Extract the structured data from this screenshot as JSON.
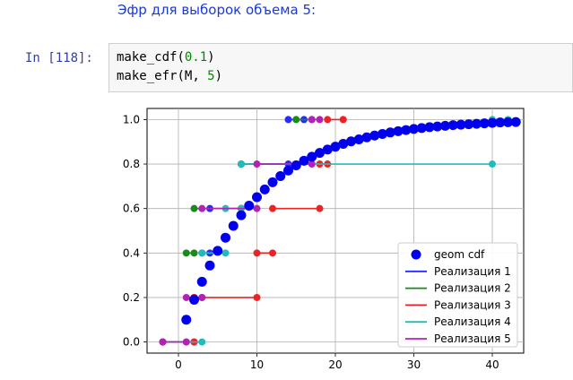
{
  "markdown": {
    "text": "Эфр для выборок объема 5:"
  },
  "cell": {
    "prompt": "In [118]:",
    "line1": {
      "fn": "make_cdf",
      "open": "(",
      "arg": "0.1",
      "close": ")"
    },
    "line2": {
      "fn": "make_efr",
      "open": "(",
      "arg1": "M",
      "sep": ", ",
      "arg2": "5",
      "close": ")"
    }
  },
  "chart_data": {
    "type": "line",
    "title": "",
    "xlabel": "",
    "ylabel": "",
    "xlim": [
      -4,
      44
    ],
    "ylim": [
      -0.05,
      1.05
    ],
    "xticks": [
      0,
      10,
      20,
      30,
      40
    ],
    "yticks": [
      0.0,
      0.2,
      0.4,
      0.6,
      0.8,
      1.0
    ],
    "xtick_labels": [
      "0",
      "10",
      "20",
      "30",
      "40"
    ],
    "ytick_labels": [
      "0.0",
      "0.2",
      "0.4",
      "0.6",
      "0.8",
      "1.0"
    ],
    "grid": true,
    "legend_position": "lower-right",
    "colors": {
      "geom": "#0000ee",
      "r1": "#2a2aff",
      "r2": "#1a8a1a",
      "r3": "#ee2222",
      "r4": "#22bbbb",
      "r5": "#b422b4"
    },
    "cdf": {
      "name": "geom cdf",
      "x": [
        1,
        2,
        3,
        4,
        5,
        6,
        7,
        8,
        9,
        10,
        11,
        12,
        13,
        14,
        15,
        16,
        17,
        18,
        19,
        20,
        21,
        22,
        23,
        24,
        25,
        26,
        27,
        28,
        29,
        30,
        31,
        32,
        33,
        34,
        35,
        36,
        37,
        38,
        39,
        40,
        41,
        42,
        43
      ],
      "y": [
        0.1,
        0.19,
        0.271,
        0.344,
        0.41,
        0.469,
        0.522,
        0.57,
        0.613,
        0.651,
        0.686,
        0.718,
        0.746,
        0.771,
        0.794,
        0.815,
        0.833,
        0.85,
        0.865,
        0.878,
        0.891,
        0.902,
        0.911,
        0.92,
        0.928,
        0.935,
        0.942,
        0.948,
        0.953,
        0.958,
        0.962,
        0.966,
        0.969,
        0.972,
        0.975,
        0.977,
        0.979,
        0.981,
        0.983,
        0.985,
        0.987,
        0.988,
        0.989
      ]
    },
    "series": [
      {
        "name": "Реализация 1",
        "color_key": "r1",
        "steps": [
          [
            -2,
            0,
            2
          ],
          [
            2,
            0.2,
            3
          ],
          [
            3,
            0.4,
            4
          ],
          [
            4,
            0.6,
            8
          ],
          [
            8,
            0.8,
            14
          ],
          [
            14,
            1.0,
            16
          ]
        ]
      },
      {
        "name": "Реализация 2",
        "color_key": "r2",
        "steps": [
          [
            -2,
            0,
            1
          ],
          [
            1,
            0.4,
            2
          ],
          [
            2,
            0.6,
            8
          ],
          [
            8,
            0.8,
            15
          ],
          [
            15,
            1.0,
            17
          ]
        ]
      },
      {
        "name": "Реализация 3",
        "color_key": "r3",
        "steps": [
          [
            -2,
            0,
            2
          ],
          [
            2,
            0.2,
            10
          ],
          [
            10,
            0.4,
            12
          ],
          [
            12,
            0.6,
            18
          ],
          [
            18,
            0.8,
            19
          ],
          [
            19,
            1.0,
            21
          ]
        ]
      },
      {
        "name": "Реализация 4",
        "color_key": "r4",
        "steps": [
          [
            -2,
            0,
            3
          ],
          [
            3,
            0.4,
            6
          ],
          [
            6,
            0.6,
            8
          ],
          [
            8,
            0.8,
            40
          ],
          [
            40,
            1.0,
            42
          ]
        ]
      },
      {
        "name": "Реализация 5",
        "color_key": "r5",
        "steps": [
          [
            -2,
            0,
            1
          ],
          [
            1,
            0.2,
            3
          ],
          [
            3,
            0.6,
            10
          ],
          [
            10,
            0.8,
            17
          ],
          [
            17,
            1.0,
            18
          ]
        ]
      }
    ]
  }
}
